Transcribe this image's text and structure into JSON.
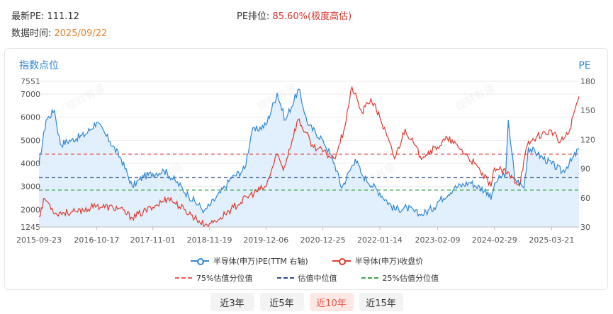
{
  "header": {
    "pe_label": "最新PE:",
    "pe_value": "111.12",
    "rank_label": "PE排位:",
    "rank_value": "85.60%(极度高估)",
    "date_label": "数据时间:",
    "date_value": "2025/09/22"
  },
  "watermark_text": "理财有道",
  "periods": [
    {
      "label": "近3年",
      "active": false
    },
    {
      "label": "近5年",
      "active": false
    },
    {
      "label": "近10年",
      "active": true
    },
    {
      "label": "近15年",
      "active": false
    }
  ],
  "colors": {
    "pe": "#2f86d6",
    "pe_fill": "#dcedfb",
    "price": "#e03a2f",
    "p75": "#e45959",
    "p50": "#2b4a8a",
    "p25": "#3aa64a",
    "grid": "#e9e9e9"
  },
  "chart_data": {
    "type": "line",
    "ylabel_left": "指数点位",
    "ylabel_right": "PE",
    "y_left": {
      "min": 1245,
      "max": 7551,
      "ticks": [
        1245,
        2000,
        3000,
        4000,
        5000,
        6000,
        7000,
        7551
      ]
    },
    "y_right": {
      "min": 30,
      "max": 180,
      "ticks": [
        30,
        60,
        90,
        120,
        150,
        180
      ]
    },
    "x_ticks": [
      "2015-09-23",
      "2016-10-17",
      "2017-11-01",
      "2018-11-19",
      "2019-12-06",
      "2020-12-25",
      "2022-01-14",
      "2023-02-09",
      "2024-02-29",
      "2025-03-21"
    ],
    "x_range": [
      "2015-09-23",
      "2025-09-22"
    ],
    "reference_lines": [
      {
        "name": "75%估值分位值",
        "axis": "right",
        "value": 105,
        "color": "#e45959"
      },
      {
        "name": "估值中位值",
        "axis": "right",
        "value": 81,
        "color": "#2b4a8a"
      },
      {
        "name": "25%估值分位值",
        "axis": "right",
        "value": 68,
        "color": "#3aa64a"
      }
    ],
    "series": [
      {
        "name": "半导体(申万)PE(TTM 右轴)",
        "axis": "right",
        "points": [
          [
            "2015-09-23",
            95
          ],
          [
            "2015-11-10",
            140
          ],
          [
            "2016-01-05",
            150
          ],
          [
            "2016-02-15",
            115
          ],
          [
            "2016-05-01",
            120
          ],
          [
            "2016-08-01",
            125
          ],
          [
            "2016-10-17",
            138
          ],
          [
            "2017-01-15",
            118
          ],
          [
            "2017-04-01",
            100
          ],
          [
            "2017-06-15",
            72
          ],
          [
            "2017-09-01",
            82
          ],
          [
            "2017-11-01",
            85
          ],
          [
            "2018-01-15",
            88
          ],
          [
            "2018-04-01",
            78
          ],
          [
            "2018-07-01",
            62
          ],
          [
            "2018-10-15",
            47
          ],
          [
            "2018-11-19",
            52
          ],
          [
            "2019-02-01",
            65
          ],
          [
            "2019-04-15",
            80
          ],
          [
            "2019-07-15",
            90
          ],
          [
            "2019-09-01",
            128
          ],
          [
            "2019-12-06",
            135
          ],
          [
            "2020-02-20",
            168
          ],
          [
            "2020-04-15",
            140
          ],
          [
            "2020-07-15",
            172
          ],
          [
            "2020-09-15",
            135
          ],
          [
            "2020-12-25",
            120
          ],
          [
            "2021-03-15",
            95
          ],
          [
            "2021-05-01",
            70
          ],
          [
            "2021-08-01",
            100
          ],
          [
            "2021-09-15",
            84
          ],
          [
            "2022-01-14",
            65
          ],
          [
            "2022-04-25",
            48
          ],
          [
            "2022-07-15",
            50
          ],
          [
            "2022-10-15",
            42
          ],
          [
            "2023-01-15",
            50
          ],
          [
            "2023-02-09",
            56
          ],
          [
            "2023-06-01",
            70
          ],
          [
            "2023-09-15",
            76
          ],
          [
            "2024-01-15",
            66
          ],
          [
            "2024-02-05",
            58
          ],
          [
            "2024-02-29",
            75
          ],
          [
            "2024-05-15",
            86
          ],
          [
            "2024-06-01",
            140
          ],
          [
            "2024-07-15",
            80
          ],
          [
            "2024-09-15",
            70
          ],
          [
            "2024-10-15",
            112
          ],
          [
            "2024-12-15",
            105
          ],
          [
            "2025-03-21",
            95
          ],
          [
            "2025-06-01",
            87
          ],
          [
            "2025-08-01",
            98
          ],
          [
            "2025-09-22",
            111
          ]
        ]
      },
      {
        "name": "半导体(申万)收盘价",
        "axis": "left",
        "points": [
          [
            "2015-09-23",
            1700
          ],
          [
            "2015-11-01",
            2480
          ],
          [
            "2016-01-15",
            1850
          ],
          [
            "2016-06-01",
            1900
          ],
          [
            "2016-10-17",
            2150
          ],
          [
            "2017-03-15",
            2050
          ],
          [
            "2017-06-15",
            1650
          ],
          [
            "2017-11-01",
            2100
          ],
          [
            "2018-02-15",
            2500
          ],
          [
            "2018-06-01",
            2000
          ],
          [
            "2018-10-19",
            1320
          ],
          [
            "2018-11-19",
            1400
          ],
          [
            "2019-02-01",
            1650
          ],
          [
            "2019-05-01",
            2100
          ],
          [
            "2019-08-15",
            2600
          ],
          [
            "2019-12-06",
            3000
          ],
          [
            "2020-02-20",
            4400
          ],
          [
            "2020-04-01",
            3700
          ],
          [
            "2020-07-10",
            5900
          ],
          [
            "2020-10-15",
            4800
          ],
          [
            "2020-12-25",
            4500
          ],
          [
            "2021-03-10",
            4200
          ],
          [
            "2021-05-15",
            5400
          ],
          [
            "2021-07-10",
            7300
          ],
          [
            "2021-09-15",
            6200
          ],
          [
            "2021-11-15",
            6800
          ],
          [
            "2022-01-14",
            6000
          ],
          [
            "2022-04-25",
            4200
          ],
          [
            "2022-07-05",
            5500
          ],
          [
            "2022-10-15",
            4300
          ],
          [
            "2023-02-09",
            4700
          ],
          [
            "2023-04-15",
            5100
          ],
          [
            "2023-07-15",
            4600
          ],
          [
            "2023-10-15",
            4000
          ],
          [
            "2024-02-05",
            3000
          ],
          [
            "2024-02-29",
            3800
          ],
          [
            "2024-05-15",
            3600
          ],
          [
            "2024-08-15",
            3100
          ],
          [
            "2024-10-08",
            4800
          ],
          [
            "2024-12-15",
            5200
          ],
          [
            "2025-03-21",
            5400
          ],
          [
            "2025-05-15",
            4900
          ],
          [
            "2025-07-15",
            5300
          ],
          [
            "2025-08-20",
            6200
          ],
          [
            "2025-09-22",
            6900
          ]
        ]
      }
    ]
  }
}
